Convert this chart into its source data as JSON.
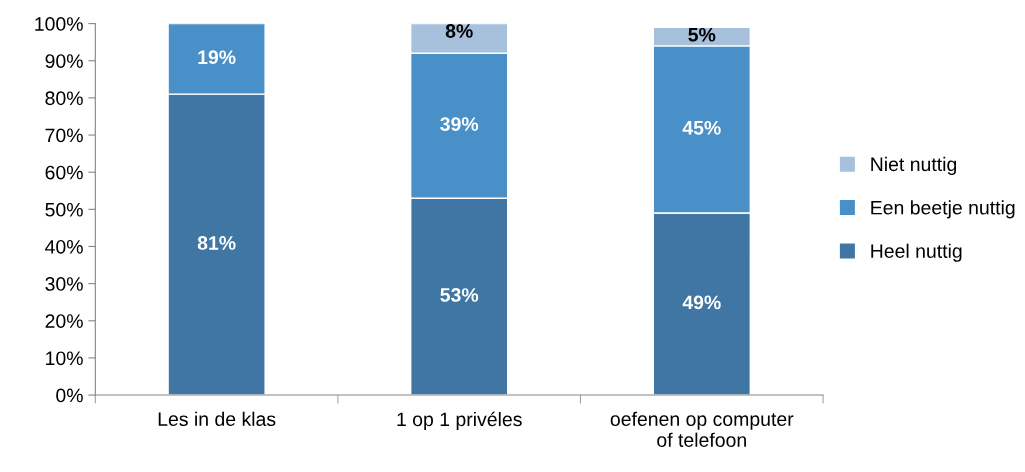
{
  "chart_data": {
    "type": "bar",
    "stacked": true,
    "categories": [
      "Les in de klas",
      "1 op 1 privéles",
      "oefenen op computer\nof telefoon"
    ],
    "series": [
      {
        "name": "Heel nuttig",
        "color": "#3f76a4",
        "values": [
          81,
          53,
          49
        ],
        "value_labels": [
          "81%",
          "53%",
          "49%"
        ]
      },
      {
        "name": "Een beetje nuttig",
        "color": "#4a90c8",
        "values": [
          19,
          39,
          45
        ],
        "value_labels": [
          "19%",
          "39%",
          "45%"
        ]
      },
      {
        "name": "Niet nuttig",
        "color": "#a7c0dc",
        "values": [
          null,
          8,
          5
        ],
        "value_labels": [
          null,
          "8%",
          "5%"
        ]
      }
    ],
    "ylim": [
      0,
      100
    ],
    "yticks": [
      {
        "value": 0,
        "label": "0%"
      },
      {
        "value": 10,
        "label": "10%"
      },
      {
        "value": 20,
        "label": "20%"
      },
      {
        "value": 30,
        "label": "30%"
      },
      {
        "value": 40,
        "label": "40%"
      },
      {
        "value": 50,
        "label": "50%"
      },
      {
        "value": 60,
        "label": "60%"
      },
      {
        "value": 70,
        "label": "70%"
      },
      {
        "value": 80,
        "label": "80%"
      },
      {
        "value": 90,
        "label": "90%"
      },
      {
        "value": 100,
        "label": "100%"
      }
    ],
    "grid": false,
    "legend": "right"
  }
}
